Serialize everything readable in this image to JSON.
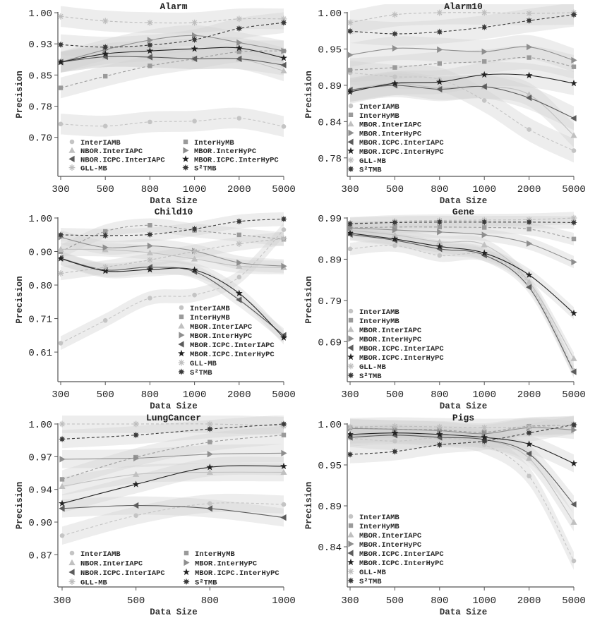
{
  "series_styles": [
    {
      "name": "InterIAMB",
      "marker": "circle-icon",
      "color": "#c4c4c4",
      "line": "dashed"
    },
    {
      "name": "InterHyMB",
      "marker": "square-icon",
      "color": "#9a9a9a",
      "line": "dashed"
    },
    {
      "name": "MBOR.InterIAPC",
      "marker": "triangle-up-icon",
      "color": "#c0c0c0",
      "line": "solid"
    },
    {
      "name": "MBOR.InterHyPC",
      "marker": "triangle-right-icon",
      "color": "#8e8e8e",
      "line": "solid"
    },
    {
      "name": "MBOR.ICPC.InterIAPC",
      "marker": "triangle-left-icon",
      "color": "#5c5c5c",
      "line": "solid"
    },
    {
      "name": "MBOR.ICPC.InterHyPC",
      "marker": "star-icon",
      "color": "#222222",
      "line": "solid"
    },
    {
      "name": "GLL-MB",
      "marker": "asterisk-icon",
      "color": "#bdbdbd",
      "line": "dashed"
    },
    {
      "name": "S2TMB",
      "marker": "starburst-icon",
      "color": "#3a3a3a",
      "line": "dashed"
    }
  ],
  "band_color": "#cfcfcf",
  "chart_data": [
    {
      "type": "line",
      "title": "Alarm",
      "xlabel": "Data Size",
      "ylabel": "Precision",
      "categories": [
        "300",
        "500",
        "800",
        "1000",
        "2000",
        "5000"
      ],
      "ylim": [
        0.606,
        1.0
      ],
      "yticks": [
        1.0,
        0.925,
        0.85,
        0.775,
        0.7
      ],
      "ytick_labels": [
        "1.00",
        "0.93",
        "0.85",
        "0.78",
        "0.70"
      ],
      "grid": false,
      "ci_halfwidth": 0.025,
      "legend": {
        "placement": "bottom-left",
        "columns": 2,
        "labels": [
          "InterIAMB",
          "InterHyMB",
          "NBOR.InterIAPC",
          "MBOR.InterHyPC",
          "NBOR.ICPC.InterIAPC",
          "MBOR.ICPC.InterHyPC",
          "GLL-MB",
          "S²TMB"
        ]
      },
      "series": [
        {
          "name": "InterIAMB",
          "values": [
            0.732,
            0.727,
            0.737,
            0.739,
            0.746,
            0.726
          ]
        },
        {
          "name": "InterHyMB",
          "values": [
            0.819,
            0.847,
            0.872,
            0.889,
            0.906,
            0.908
          ]
        },
        {
          "name": "MBOR.InterIAPC",
          "values": [
            0.881,
            0.894,
            0.894,
            0.889,
            0.889,
            0.86
          ]
        },
        {
          "name": "MBOR.InterHyPC",
          "values": [
            0.881,
            0.911,
            0.934,
            0.945,
            0.928,
            0.908
          ]
        },
        {
          "name": "MBOR.ICPC.InterIAPC",
          "values": [
            0.881,
            0.894,
            0.893,
            0.889,
            0.889,
            0.874
          ]
        },
        {
          "name": "MBOR.ICPC.InterHyPC",
          "values": [
            0.881,
            0.901,
            0.908,
            0.913,
            0.915,
            0.891
          ]
        },
        {
          "name": "GLL-MB",
          "values": [
            0.991,
            0.98,
            0.976,
            0.976,
            0.985,
            0.985
          ]
        },
        {
          "name": "S2TMB",
          "values": [
            0.923,
            0.917,
            0.922,
            0.935,
            0.962,
            0.976
          ]
        }
      ]
    },
    {
      "type": "line",
      "title": "Alarm10",
      "xlabel": "Data Size",
      "ylabel": "Precision",
      "categories": [
        "300",
        "500",
        "800",
        "1000",
        "2000",
        "5000"
      ],
      "ylim": [
        0.752,
        1.0
      ],
      "yticks": [
        1.0,
        0.945,
        0.89,
        0.835,
        0.78
      ],
      "ytick_labels": [
        "1.00",
        "0.95",
        "0.89",
        "0.84",
        "0.78"
      ],
      "grid": false,
      "ci_halfwidth": 0.018,
      "legend": {
        "placement": "bottom-left",
        "columns": 1,
        "labels": [
          "InterIAMB",
          "InterHyMB",
          "MBOR.InterIAPC",
          "MBOR.InterHyPC",
          "MBOR.ICPC.InterIAPC",
          "MBOR.ICPC.InterHyPC",
          "GLL-MB",
          "S²TMB"
        ]
      },
      "series": [
        {
          "name": "InterIAMB",
          "values": [
            0.909,
            0.903,
            0.899,
            0.867,
            0.823,
            0.791
          ]
        },
        {
          "name": "InterHyMB",
          "values": [
            0.913,
            0.917,
            0.923,
            0.926,
            0.932,
            0.918
          ]
        },
        {
          "name": "MBOR.InterIAPC",
          "values": [
            0.883,
            0.893,
            0.886,
            0.888,
            0.876,
            0.814
          ]
        },
        {
          "name": "MBOR.InterHyPC",
          "values": [
            0.936,
            0.946,
            0.944,
            0.941,
            0.948,
            0.928
          ]
        },
        {
          "name": "MBOR.ICPC.InterIAPC",
          "values": [
            0.883,
            0.89,
            0.884,
            0.888,
            0.871,
            0.84
          ]
        },
        {
          "name": "MBOR.ICPC.InterHyPC",
          "values": [
            0.88,
            0.893,
            0.895,
            0.906,
            0.905,
            0.893
          ]
        },
        {
          "name": "GLL-MB",
          "values": [
            0.985,
            0.997,
            1.0,
            1.0,
            0.999,
            1.0
          ]
        },
        {
          "name": "S2TMB",
          "values": [
            0.972,
            0.968,
            0.971,
            0.978,
            0.988,
            0.997
          ]
        }
      ]
    },
    {
      "type": "line",
      "title": "Child10",
      "xlabel": "Data Size",
      "ylabel": "Precision",
      "categories": [
        "300",
        "500",
        "800",
        "1000",
        "2000",
        "5000"
      ],
      "ylim": [
        0.524,
        1.0
      ],
      "yticks": [
        1.0,
        0.9025,
        0.805,
        0.7075,
        0.61
      ],
      "ytick_labels": [
        "1.00",
        "0.90",
        "0.80",
        "0.71",
        "0.61"
      ],
      "grid": false,
      "ci_halfwidth": 0.02,
      "legend": {
        "placement": "bottom-right",
        "columns": 1,
        "labels": [
          "InterIAMB",
          "InterHyMB",
          "MBOR.InterIAPC",
          "MBOR.InterHyPC",
          "MBOR.ICPC.InterIAPC",
          "MBOR.ICPC.InterHyPC",
          "GLL-MB",
          "S²TMB"
        ]
      },
      "series": [
        {
          "name": "InterIAMB",
          "values": [
            0.636,
            0.702,
            0.767,
            0.776,
            0.828,
            0.966
          ]
        },
        {
          "name": "InterHyMB",
          "values": [
            0.902,
            0.961,
            0.979,
            0.964,
            0.951,
            0.938
          ]
        },
        {
          "name": "MBOR.InterIAPC",
          "values": [
            0.909,
            0.908,
            0.899,
            0.881,
            0.86,
            0.856
          ]
        },
        {
          "name": "MBOR.InterHyPC",
          "values": [
            0.944,
            0.914,
            0.919,
            0.904,
            0.87,
            0.86
          ]
        },
        {
          "name": "MBOR.ICPC.InterIAPC",
          "values": [
            0.883,
            0.849,
            0.857,
            0.844,
            0.762,
            0.659
          ]
        },
        {
          "name": "MBOR.ICPC.InterHyPC",
          "values": [
            0.882,
            0.846,
            0.85,
            0.849,
            0.781,
            0.652
          ]
        },
        {
          "name": "GLL-MB",
          "values": [
            0.839,
            0.857,
            0.878,
            0.903,
            0.925,
            0.94
          ]
        },
        {
          "name": "S2TMB",
          "values": [
            0.951,
            0.949,
            0.952,
            0.968,
            0.99,
            0.997
          ]
        }
      ]
    },
    {
      "type": "line",
      "title": "Gene",
      "xlabel": "Data Size",
      "ylabel": "Precision",
      "categories": [
        "300",
        "500",
        "800",
        "1000",
        "2000",
        "5000"
      ],
      "ylim": [
        0.593,
        0.99
      ],
      "yticks": [
        0.99,
        0.89,
        0.79,
        0.69
      ],
      "ytick_labels": [
        "0.99",
        "0.89",
        "0.79",
        "0.69"
      ],
      "grid": false,
      "ci_halfwidth": 0.015,
      "legend": {
        "placement": "bottom-left",
        "columns": 1,
        "labels": [
          "InterIAMB",
          "InterHyMB",
          "MBOR.InterIAPC",
          "MBOR.InterHyPC",
          "MBOR.ICPC.InterIAPC",
          "MBOR.ICPC.InterHyPC",
          "GLL-MB",
          "S²TMB"
        ]
      },
      "series": [
        {
          "name": "InterIAMB",
          "values": [
            0.915,
            0.923,
            0.899,
            0.9,
            0.83,
            0.62
          ]
        },
        {
          "name": "InterHyMB",
          "values": [
            0.966,
            0.968,
            0.968,
            0.967,
            0.963,
            0.939
          ]
        },
        {
          "name": "MBOR.InterIAPC",
          "values": [
            0.96,
            0.949,
            0.932,
            0.925,
            0.835,
            0.649
          ]
        },
        {
          "name": "MBOR.InterHyPC",
          "values": [
            0.966,
            0.961,
            0.956,
            0.949,
            0.928,
            0.883
          ]
        },
        {
          "name": "MBOR.ICPC.InterIAPC",
          "values": [
            0.95,
            0.936,
            0.915,
            0.9,
            0.822,
            0.617
          ]
        },
        {
          "name": "MBOR.ICPC.InterHyPC",
          "values": [
            0.953,
            0.939,
            0.921,
            0.905,
            0.852,
            0.759
          ]
        },
        {
          "name": "GLL-MB",
          "values": [
            0.977,
            0.982,
            0.984,
            0.985,
            0.986,
            0.99
          ]
        },
        {
          "name": "S2TMB",
          "values": [
            0.976,
            0.979,
            0.98,
            0.98,
            0.98,
            0.979
          ]
        }
      ]
    },
    {
      "type": "line",
      "title": "LungCancer",
      "xlabel": "Data Size",
      "ylabel": "Precision",
      "categories": [
        "300",
        "500",
        "800",
        "1000"
      ],
      "ylim": [
        0.838,
        1.0
      ],
      "yticks": [
        1.0,
        0.9675,
        0.935,
        0.9025,
        0.87
      ],
      "ytick_labels": [
        "1.00",
        "0.97",
        "0.94",
        "0.90",
        "0.87"
      ],
      "grid": false,
      "ci_halfwidth": 0.009,
      "legend": {
        "placement": "bottom-left",
        "columns": 2,
        "labels": [
          "InterIAMB",
          "InterHyMB",
          "NBOR.InterIAPC",
          "MBOR.InterHyPC",
          "NBOR.ICPC.InterIAPC",
          "MBOR.ICPC.InterHyPC",
          "GLL-MB",
          "S²TMB"
        ]
      },
      "series": [
        {
          "name": "InterIAMB",
          "values": [
            0.889,
            0.909,
            0.921,
            0.92
          ]
        },
        {
          "name": "InterHyMB",
          "values": [
            0.945,
            0.967,
            0.982,
            0.989
          ]
        },
        {
          "name": "MBOR.InterIAPC",
          "values": [
            0.938,
            0.95,
            0.952,
            0.952
          ]
        },
        {
          "name": "MBOR.InterHyPC",
          "values": [
            0.965,
            0.966,
            0.97,
            0.971
          ]
        },
        {
          "name": "MBOR.ICPC.InterIAPC",
          "values": [
            0.916,
            0.919,
            0.916,
            0.907
          ]
        },
        {
          "name": "MBOR.ICPC.InterHyPC",
          "values": [
            0.921,
            0.94,
            0.957,
            0.958
          ]
        },
        {
          "name": "GLL-MB",
          "values": [
            1.0,
            1.0,
            1.0,
            0.998
          ]
        },
        {
          "name": "S2TMB",
          "values": [
            0.985,
            0.989,
            0.995,
            1.0
          ]
        }
      ]
    },
    {
      "type": "line",
      "title": "Pigs",
      "xlabel": "Data Size",
      "ylabel": "Precision",
      "categories": [
        "300",
        "500",
        "800",
        "1000",
        "2000",
        "5000"
      ],
      "ylim": [
        0.781,
        1.0
      ],
      "yticks": [
        1.0,
        0.945,
        0.89,
        0.835
      ],
      "ytick_labels": [
        "1.00",
        "0.95",
        "0.89",
        "0.84"
      ],
      "grid": false,
      "ci_halfwidth": 0.012,
      "legend": {
        "placement": "bottom-left",
        "columns": 1,
        "labels": [
          "InterIAMB",
          "InterHyMB",
          "MBOR.InterIAPC",
          "MBOR.InterHyPC",
          "MBOR.ICPC.InterIAPC",
          "MBOR.ICPC.InterHyPC",
          "GLL-MB",
          "S²TMB"
        ]
      },
      "series": [
        {
          "name": "InterIAMB",
          "values": [
            0.981,
            0.977,
            0.981,
            0.972,
            0.93,
            0.816
          ]
        },
        {
          "name": "InterHyMB",
          "values": [
            0.995,
            0.993,
            0.992,
            0.989,
            0.997,
            0.998
          ]
        },
        {
          "name": "MBOR.InterIAPC",
          "values": [
            0.984,
            0.986,
            0.983,
            0.979,
            0.954,
            0.868
          ]
        },
        {
          "name": "MBOR.InterHyPC",
          "values": [
            0.994,
            0.993,
            0.991,
            0.987,
            0.995,
            0.992
          ]
        },
        {
          "name": "MBOR.ICPC.InterIAPC",
          "values": [
            0.982,
            0.985,
            0.982,
            0.979,
            0.96,
            0.892
          ]
        },
        {
          "name": "MBOR.ICPC.InterHyPC",
          "values": [
            0.986,
            0.988,
            0.986,
            0.982,
            0.973,
            0.947
          ]
        },
        {
          "name": "GLL-MB",
          "values": [
            0.996,
            0.997,
            0.996,
            0.995,
            0.996,
            0.999
          ]
        },
        {
          "name": "S2TMB",
          "values": [
            0.959,
            0.963,
            0.972,
            0.977,
            0.988,
            0.999
          ]
        }
      ]
    }
  ]
}
